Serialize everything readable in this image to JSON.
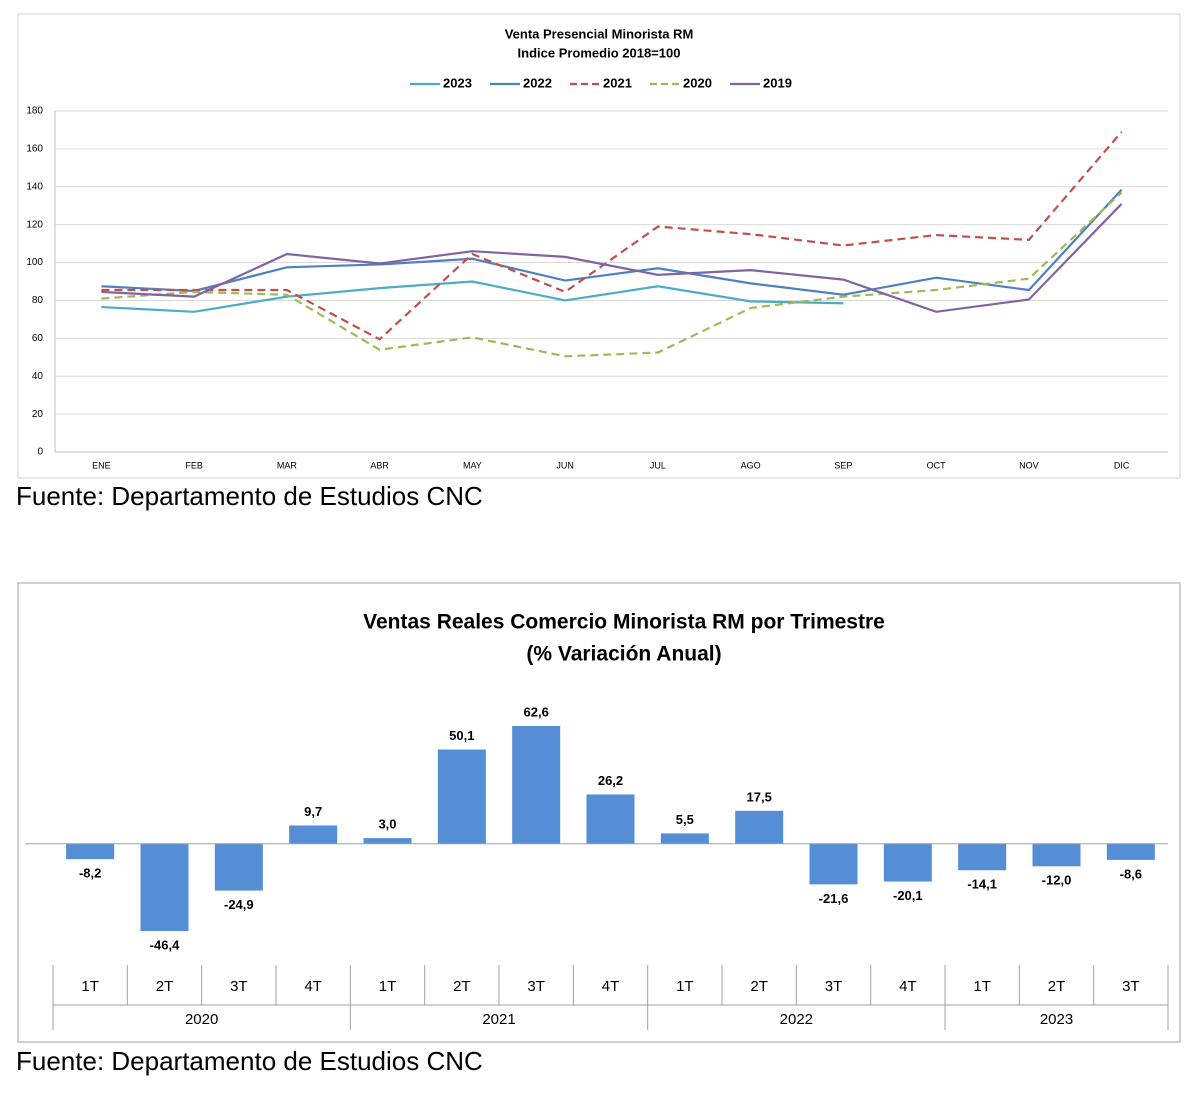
{
  "chart_data": [
    {
      "type": "line",
      "title": "Venta Presencial Minorista RM",
      "subtitle": "Indice Promedio 2018=100",
      "categories": [
        "ENE",
        "FEB",
        "MAR",
        "ABR",
        "MAY",
        "JUN",
        "JUL",
        "AGO",
        "SEP",
        "OCT",
        "NOV",
        "DIC"
      ],
      "ylim": [
        0,
        180
      ],
      "yticks": [
        0,
        20,
        40,
        60,
        80,
        100,
        120,
        140,
        160,
        180
      ],
      "grid": true,
      "legend": "top",
      "series": [
        {
          "name": "2023",
          "color": "#4bacc6",
          "dashed": false,
          "values": [
            76.5,
            74,
            82,
            86.5,
            90,
            80,
            87.5,
            79.5,
            78.5,
            null,
            null,
            null
          ]
        },
        {
          "name": "2022",
          "color": "#4f81bd",
          "dashed": false,
          "values": [
            87.5,
            85,
            97.5,
            99,
            102,
            90.5,
            97,
            89,
            83,
            92,
            85.5,
            138.5
          ]
        },
        {
          "name": "2021",
          "color": "#c0504d",
          "dashed": true,
          "values": [
            85.5,
            85.5,
            85.5,
            59.5,
            104.5,
            84.5,
            119,
            115,
            109,
            114.5,
            112,
            169
          ]
        },
        {
          "name": "2020",
          "color": "#9bbb59",
          "dashed": true,
          "values": [
            81,
            84.5,
            83,
            54,
            60.5,
            50.5,
            52.5,
            76,
            82,
            85.5,
            91.5,
            137
          ]
        },
        {
          "name": "2019",
          "color": "#8064a2",
          "dashed": false,
          "values": [
            84.5,
            82,
            104.5,
            99.5,
            106,
            103,
            93.5,
            96,
            91,
            74,
            80.5,
            131
          ]
        }
      ],
      "source": "Fuente: Departamento de Estudios CNC"
    },
    {
      "type": "bar",
      "title": "Ventas Reales Comercio Minorista RM por Trimestre",
      "subtitle": "(% Variación Anual)",
      "color": "#558ed5",
      "groups": [
        {
          "name": "2020",
          "categories": [
            "1T",
            "2T",
            "3T",
            "4T"
          ]
        },
        {
          "name": "2021",
          "categories": [
            "1T",
            "2T",
            "3T",
            "4T"
          ]
        },
        {
          "name": "2022",
          "categories": [
            "1T",
            "2T",
            "3T",
            "4T"
          ]
        },
        {
          "name": "2023",
          "categories": [
            "1T",
            "2T",
            "3T"
          ]
        }
      ],
      "values": [
        -8.2,
        -46.4,
        -24.9,
        9.7,
        3.0,
        50.1,
        62.6,
        26.2,
        5.5,
        17.5,
        -21.6,
        -20.1,
        -14.1,
        -12.0,
        -8.6
      ],
      "value_labels": [
        "-8,2",
        "-46,4",
        "-24,9",
        "9,7",
        "3,0",
        "50,1",
        "62,6",
        "26,2",
        "5,5",
        "17,5",
        "-21,6",
        "-20,1",
        "-14,1",
        "-12,0",
        "-8,6"
      ],
      "source": "Fuente: Departamento de Estudios CNC"
    }
  ]
}
